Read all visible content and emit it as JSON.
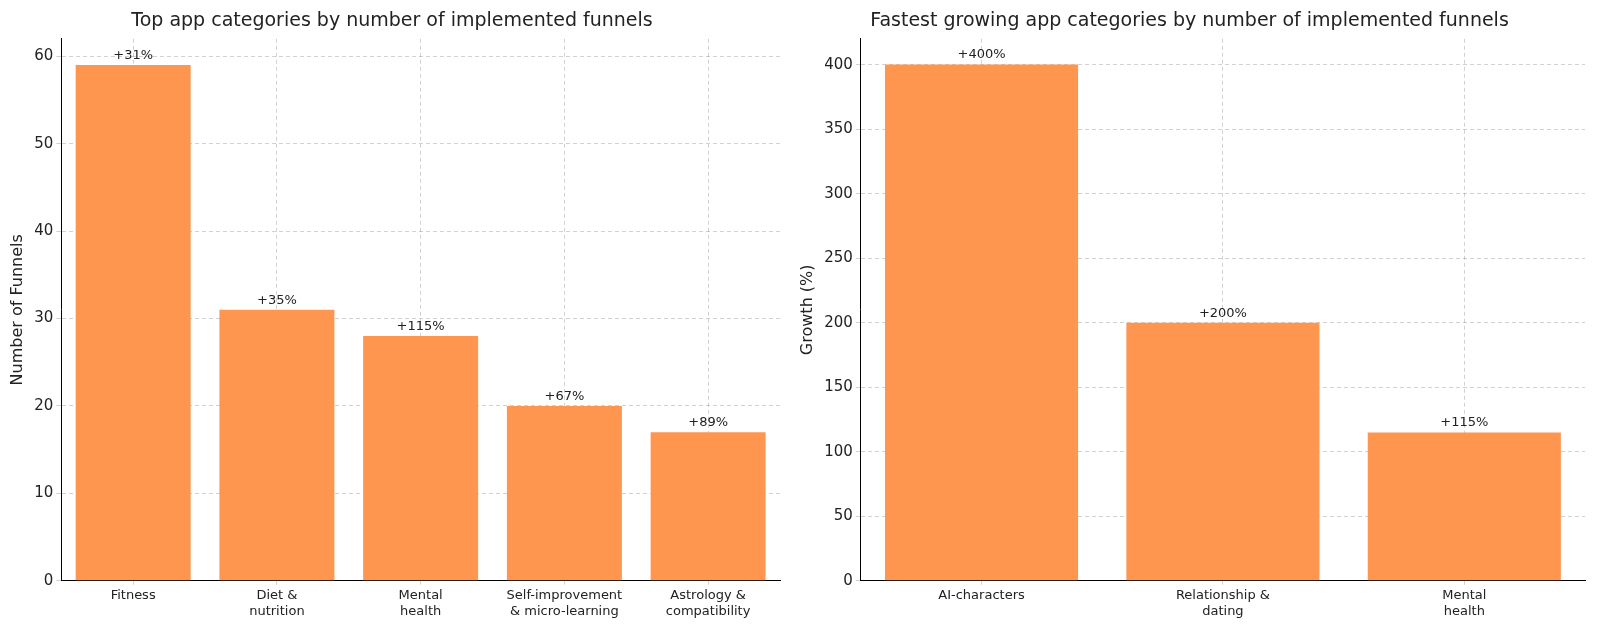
{
  "chart_data": [
    {
      "type": "bar",
      "title": "Top app categories by number of implemented funnels",
      "y_label": "Number of Funnels",
      "categories": [
        "Fitness",
        "Diet &\nnutrition",
        "Mental\nhealth",
        "Self-improvement\n& micro-learning",
        "Astrology &\ncompatibility"
      ],
      "values": [
        59,
        31,
        28,
        20,
        17
      ],
      "annotations": [
        "+31%",
        "+35%",
        "+115%",
        "+67%",
        "+89%"
      ],
      "color": "#fe9650",
      "ylim": [
        0,
        62
      ],
      "yticks": [
        0,
        10,
        20,
        30,
        40,
        50,
        60
      ],
      "grid": true
    },
    {
      "type": "bar",
      "title": "Fastest growing app categories by number of implemented funnels",
      "y_label": "Growth (%)",
      "categories": [
        "AI-characters",
        "Relationship &\ndating",
        "Mental\nhealth"
      ],
      "values": [
        400,
        200,
        115
      ],
      "value_labels": [
        "+400%",
        "+200%",
        "+115%"
      ],
      "data_labels": true,
      "color": "#fe9650",
      "ylim": [
        0,
        420
      ],
      "yticks": [
        0,
        50,
        100,
        150,
        200,
        250,
        300,
        350,
        400
      ],
      "grid": true
    }
  ]
}
